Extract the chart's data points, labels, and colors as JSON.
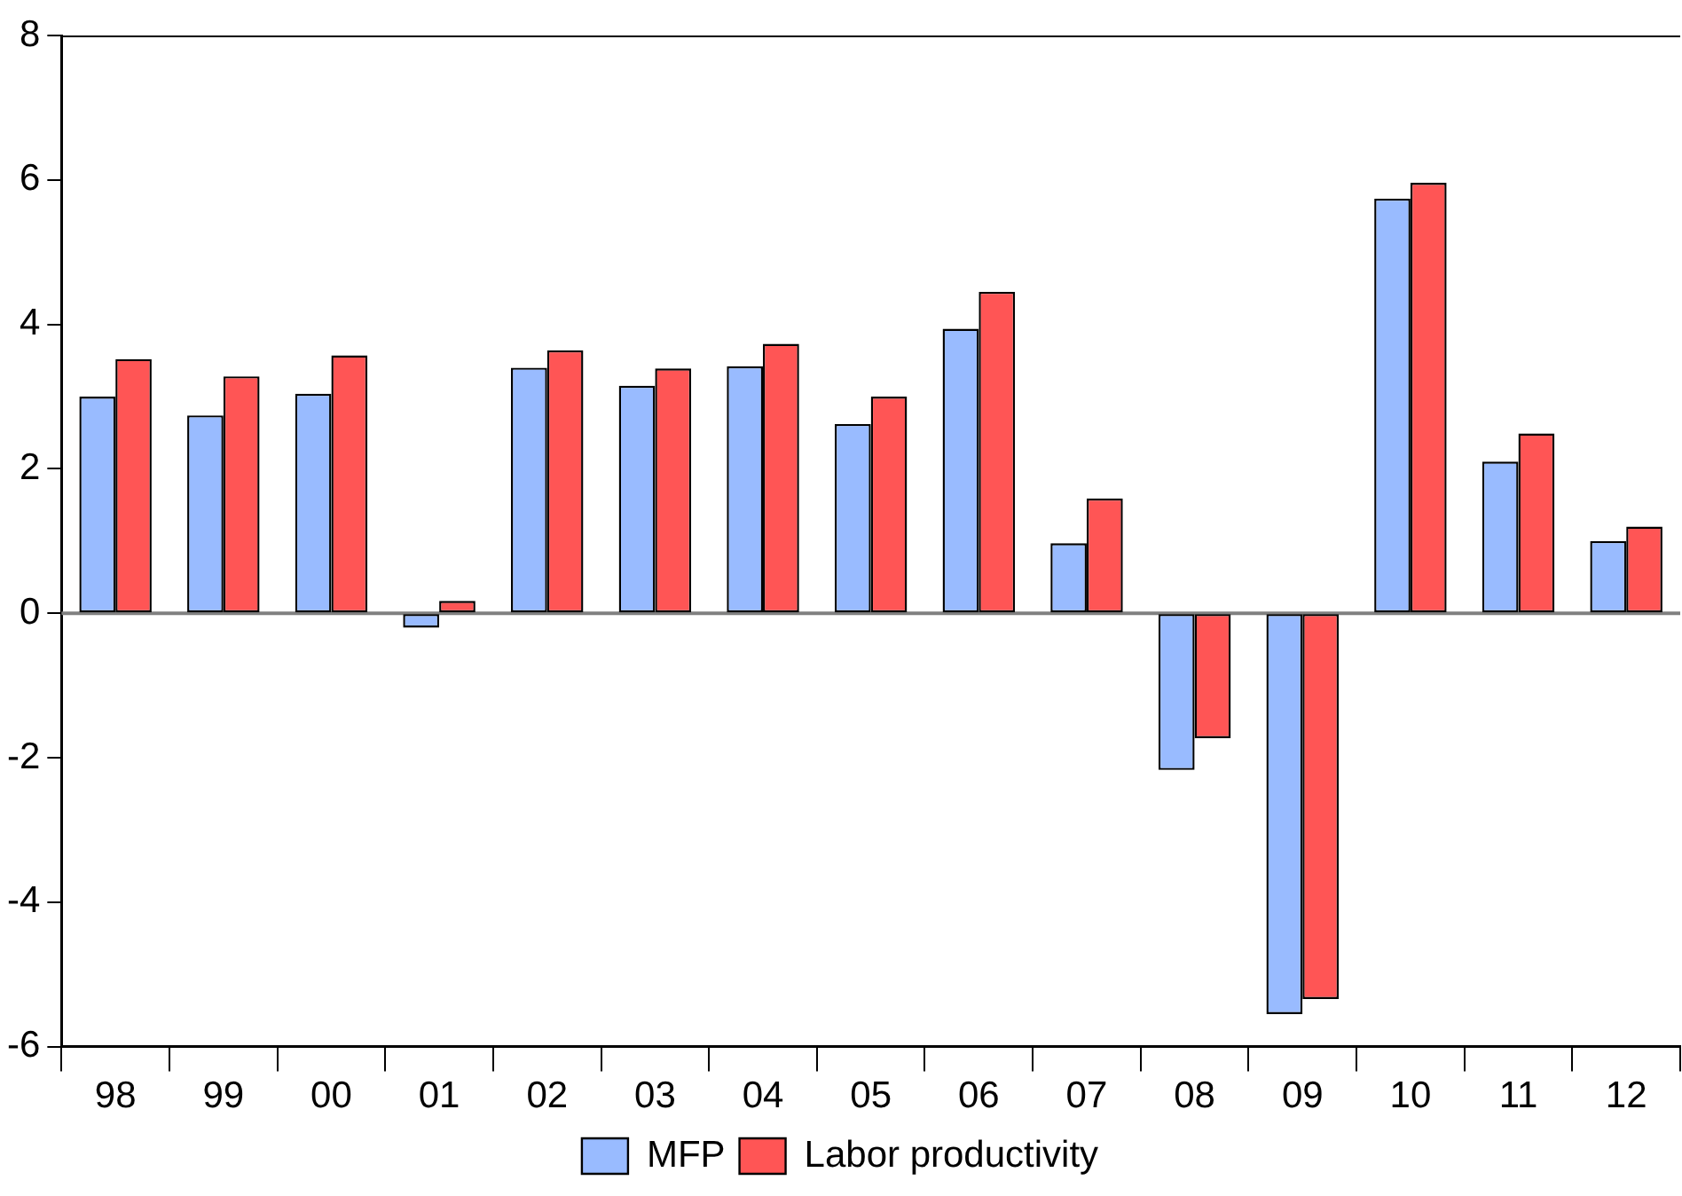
{
  "chart_data": {
    "type": "bar",
    "categories": [
      "98",
      "99",
      "00",
      "01",
      "02",
      "03",
      "04",
      "05",
      "06",
      "07",
      "08",
      "09",
      "10",
      "11",
      "12"
    ],
    "series": [
      {
        "name": "MFP",
        "color": "#99bbff",
        "values": [
          3.0,
          2.74,
          3.04,
          -0.2,
          3.4,
          3.15,
          3.42,
          2.62,
          3.94,
          0.97,
          -2.17,
          -5.55,
          5.74,
          2.1,
          1.0
        ]
      },
      {
        "name": "Labor productivity",
        "color": "#ff5555",
        "values": [
          3.52,
          3.28,
          3.57,
          0.17,
          3.64,
          3.39,
          3.73,
          3.0,
          4.45,
          1.59,
          -1.73,
          -5.34,
          5.96,
          2.49,
          1.2
        ]
      }
    ],
    "ylim": [
      -6,
      8
    ],
    "yticks": [
      -6,
      -4,
      -2,
      0,
      2,
      4,
      6,
      8
    ],
    "grid": false,
    "legend": "bottom",
    "ref_lines": [
      {
        "axis": "y",
        "value": 0,
        "color": "#808080"
      }
    ]
  }
}
